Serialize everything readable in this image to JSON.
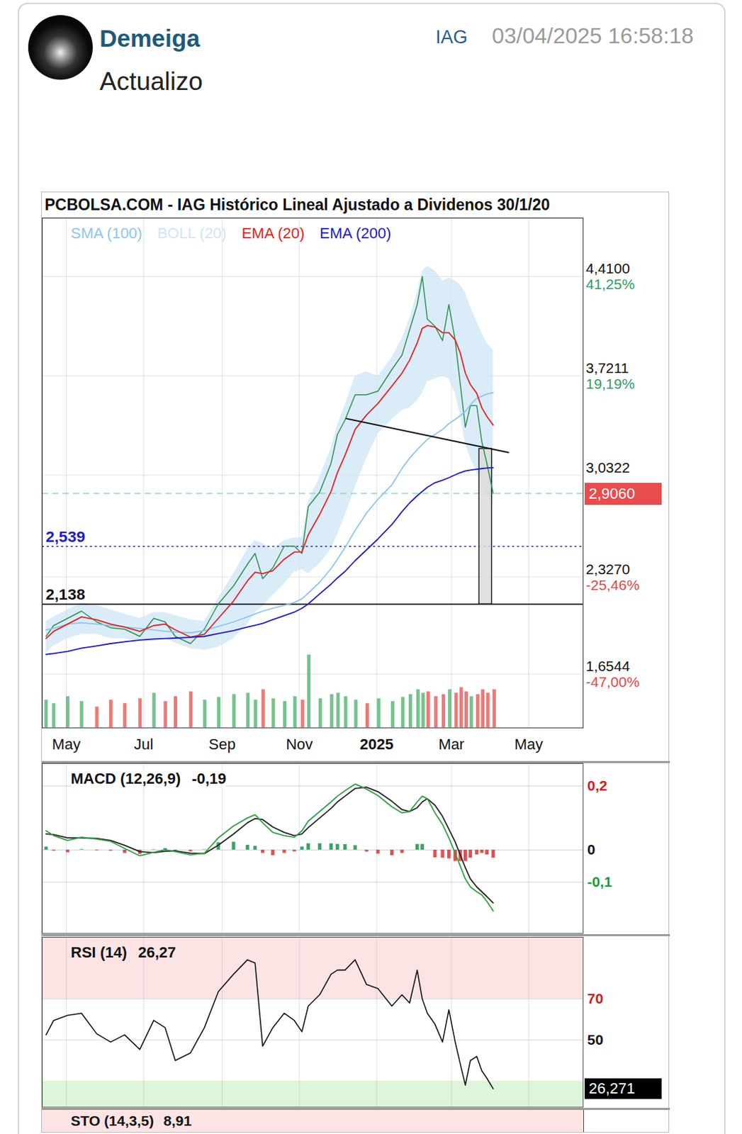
{
  "post": {
    "author": "Demeiga",
    "ticker": "IAG",
    "timestamp": "03/04/2025 16:58:18",
    "text": "Actualizo"
  },
  "chart_data": [
    {
      "type": "line",
      "title": "PCBOLSA.COM - IAG Histórico Lineal Ajustado a Dividenos 30/1/20",
      "x": [
        "2024-04-15",
        "2024-04-21",
        "2024-05-02",
        "2024-05-13",
        "2024-05-25",
        "2024-06-05",
        "2024-06-16",
        "2024-06-28",
        "2024-07-09",
        "2024-07-18",
        "2024-07-26",
        "2024-08-07",
        "2024-08-18",
        "2024-08-29",
        "2024-09-10",
        "2024-09-21",
        "2024-09-27",
        "2024-10-03",
        "2024-10-11",
        "2024-10-20",
        "2024-10-28",
        "2024-11-03",
        "2024-11-08",
        "2024-11-17",
        "2024-11-26",
        "2024-12-01",
        "2024-12-07",
        "2024-12-15",
        "2024-12-24",
        "2025-01-02",
        "2025-01-13",
        "2025-01-21",
        "2025-01-27",
        "2025-02-02",
        "2025-02-06",
        "2025-02-10",
        "2025-02-16",
        "2025-02-22",
        "2025-02-27",
        "2025-03-04",
        "2025-03-08",
        "2025-03-12",
        "2025-03-16",
        "2025-03-21",
        "2025-03-25",
        "2025-03-29",
        "2025-04-03"
      ],
      "xlim": [
        "2024-04-12",
        "2025-06-13"
      ],
      "xticks": [
        {
          "value": "2024-05-01",
          "label": "May"
        },
        {
          "value": "2024-07-01",
          "label": "Jul"
        },
        {
          "value": "2024-09-01",
          "label": "Sep"
        },
        {
          "value": "2024-11-01",
          "label": "Nov"
        },
        {
          "value": "2025-01-01",
          "label": "2025"
        },
        {
          "value": "2025-03-01",
          "label": "Mar"
        },
        {
          "value": "2025-05-01",
          "label": "May"
        }
      ],
      "ylim": [
        1.28,
        4.815
      ],
      "yticks": [
        {
          "value": 4.41,
          "label": "4,4100"
        },
        {
          "value": 3.7211,
          "label": "3,7211"
        },
        {
          "value": 3.0322,
          "label": "3,0322"
        },
        {
          "value": 2.327,
          "label": "2,3270"
        },
        {
          "value": 1.6544,
          "label": "1,6544"
        }
      ],
      "tick_notes": [
        {
          "y": 4.41,
          "label": "41,25%",
          "color": "#2e9e5e"
        },
        {
          "y": 3.7211,
          "label": "19,19%",
          "color": "#2e9e5e"
        },
        {
          "y": 2.327,
          "label": "-25,46%",
          "color": "#e04848"
        },
        {
          "y": 1.6544,
          "label": "-47,00%",
          "color": "#e04848"
        }
      ],
      "grid": true,
      "legend": "top-left",
      "series": [
        {
          "color": "#2f8f4f",
          "values": [
            1.915,
            1.99,
            2.04,
            2.09,
            2.015,
            1.975,
            1.965,
            1.915,
            2.04,
            2.015,
            1.915,
            1.865,
            1.965,
            2.14,
            2.265,
            2.415,
            2.49,
            2.315,
            2.39,
            2.54,
            2.54,
            2.49,
            2.815,
            2.915,
            3.115,
            3.315,
            3.415,
            3.59,
            3.59,
            3.615,
            3.765,
            3.865,
            4.04,
            4.215,
            4.41,
            4.115,
            4.065,
            3.965,
            4.215,
            3.965,
            3.665,
            3.365,
            3.515,
            3.515,
            3.265,
            3.115,
            2.906
          ]
        },
        {
          "name": "SMA (100)",
          "color": "#8ec5ee",
          "values": [
            1.96,
            1.97,
            2.0,
            2.01,
            2.0,
            1.99,
            1.98,
            1.97,
            1.96,
            1.95,
            1.945,
            1.94,
            1.955,
            1.985,
            2.015,
            2.05,
            2.07,
            2.09,
            2.11,
            2.13,
            2.15,
            2.175,
            2.215,
            2.29,
            2.385,
            2.45,
            2.53,
            2.65,
            2.77,
            2.865,
            2.965,
            3.08,
            3.15,
            3.21,
            3.245,
            3.28,
            3.315,
            3.35,
            3.39,
            3.42,
            3.445,
            3.475,
            3.52,
            3.565,
            3.58,
            3.595,
            3.605
          ]
        },
        {
          "name": "BOLL (20)",
          "type": "band",
          "color": "#cfe5f7",
          "lower": [
            1.8,
            1.85,
            1.9,
            1.93,
            1.93,
            1.9,
            1.9,
            1.88,
            1.88,
            1.9,
            1.87,
            1.83,
            1.82,
            1.84,
            1.9,
            2.0,
            2.08,
            2.12,
            2.2,
            2.28,
            2.36,
            2.38,
            2.35,
            2.42,
            2.52,
            2.62,
            2.75,
            2.95,
            3.15,
            3.32,
            3.42,
            3.48,
            3.5,
            3.55,
            3.6,
            3.68,
            3.7,
            3.72,
            3.7,
            3.6,
            3.45,
            3.25,
            3.15,
            3.05,
            2.98,
            2.9,
            2.82
          ],
          "upper": [
            2.02,
            2.05,
            2.1,
            2.15,
            2.13,
            2.1,
            2.07,
            2.04,
            2.08,
            2.08,
            2.06,
            2.03,
            2.02,
            2.18,
            2.35,
            2.52,
            2.58,
            2.56,
            2.52,
            2.58,
            2.6,
            2.6,
            2.85,
            3.02,
            3.22,
            3.38,
            3.52,
            3.72,
            3.75,
            3.72,
            3.85,
            3.98,
            4.12,
            4.3,
            4.45,
            4.48,
            4.45,
            4.38,
            4.4,
            4.38,
            4.35,
            4.3,
            4.2,
            4.1,
            4.02,
            3.95,
            3.9
          ]
        },
        {
          "name": "EMA (20)",
          "color": "#e02424",
          "values": [
            1.9,
            1.95,
            2.0,
            2.05,
            2.03,
            2.0,
            1.98,
            1.95,
            1.99,
            2.0,
            1.96,
            1.91,
            1.93,
            2.04,
            2.16,
            2.3,
            2.36,
            2.35,
            2.37,
            2.45,
            2.5,
            2.5,
            2.62,
            2.76,
            2.92,
            3.05,
            3.17,
            3.35,
            3.45,
            3.53,
            3.65,
            3.74,
            3.83,
            3.95,
            4.05,
            4.07,
            4.06,
            4.02,
            4.02,
            3.97,
            3.88,
            3.74,
            3.66,
            3.6,
            3.5,
            3.44,
            3.38
          ]
        },
        {
          "name": "EMA (200)",
          "color": "#1c1cc8",
          "values": [
            1.79,
            1.797,
            1.811,
            1.833,
            1.849,
            1.865,
            1.877,
            1.889,
            1.897,
            1.9,
            1.903,
            1.908,
            1.915,
            1.935,
            1.955,
            1.98,
            1.992,
            2.005,
            2.031,
            2.058,
            2.083,
            2.11,
            2.14,
            2.21,
            2.277,
            2.32,
            2.365,
            2.44,
            2.515,
            2.59,
            2.69,
            2.78,
            2.84,
            2.89,
            2.92,
            2.948,
            2.98,
            2.998,
            3.015,
            3.035,
            3.05,
            3.062,
            3.068,
            3.074,
            3.078,
            3.082,
            3.085
          ]
        }
      ],
      "lines": [
        {
          "y": 2.539,
          "label": "2,539",
          "color": "#2020c0",
          "line_style": "dotted"
        },
        {
          "y": 2.138,
          "label": "2,138",
          "color": "#111111",
          "line_style": "solid"
        },
        {
          "y": 2.906,
          "color": "#9fd8c0",
          "line_style": "dashed"
        }
      ],
      "neckline": {
        "x": [
          "2024-12-08",
          "2025-04-15"
        ],
        "y": [
          3.425,
          3.19
        ]
      },
      "box": {
        "x": [
          "2025-03-23",
          "2025-04-02"
        ],
        "y": [
          2.138,
          3.215
        ]
      },
      "last_box": {
        "value": 2.906,
        "label": "2,9060",
        "color": "#e84c4c"
      },
      "volume": {
        "ylim": [
          0,
          110
        ],
        "values": [
          40,
          35,
          45,
          38,
          30,
          40,
          35,
          42,
          50,
          38,
          45,
          52,
          40,
          44,
          48,
          50,
          40,
          55,
          42,
          38,
          45,
          40,
          105,
          42,
          48,
          50,
          45,
          40,
          35,
          42,
          38,
          44,
          48,
          55,
          50,
          52,
          45,
          48,
          55,
          50,
          58,
          52,
          45,
          48,
          55,
          50,
          55
        ],
        "colors": [
          "#5cb87a",
          "#5cb87a",
          "#5cb87a",
          "#5cb87a",
          "#e8635f",
          "#e8635f",
          "#e8635f",
          "#e8635f",
          "#5cb87a",
          "#e8635f",
          "#e8635f",
          "#e8635f",
          "#5cb87a",
          "#5cb87a",
          "#5cb87a",
          "#5cb87a",
          "#5cb87a",
          "#e8635f",
          "#5cb87a",
          "#5cb87a",
          "#5cb87a",
          "#e8635f",
          "#5cb87a",
          "#5cb87a",
          "#5cb87a",
          "#5cb87a",
          "#5cb87a",
          "#5cb87a",
          "#e8635f",
          "#5cb87a",
          "#5cb87a",
          "#5cb87a",
          "#5cb87a",
          "#5cb87a",
          "#5cb87a",
          "#e8635f",
          "#e8635f",
          "#e8635f",
          "#5cb87a",
          "#e8635f",
          "#e8635f",
          "#e8635f",
          "#5cb87a",
          "#e8635f",
          "#e8635f",
          "#e8635f",
          "#e8635f"
        ]
      }
    },
    {
      "type": "line",
      "title": "MACD (12,26,9)",
      "last_label": "-0,19",
      "ylim": [
        -0.26,
        0.27
      ],
      "yticks": [
        {
          "value": 0.2,
          "label": "0,2"
        },
        0,
        {
          "value": -0.1,
          "label": "-0,1"
        }
      ],
      "grid": true,
      "series": [
        {
          "type": "bar",
          "values": [
            0.01,
            -0.003,
            -0.008,
            0.002,
            -0.002,
            -0.003,
            -0.01,
            -0.013,
            0.001,
            0.005,
            -0.002,
            -0.005,
            0.001,
            0.023,
            0.025,
            0.015,
            0.012,
            -0.01,
            -0.017,
            -0.01,
            -0.005,
            0.01,
            0.02,
            0.02,
            0.02,
            0.018,
            0.017,
            0.014,
            -0.006,
            -0.012,
            -0.017,
            -0.01,
            0,
            0.018,
            0.018,
            0,
            -0.024,
            -0.025,
            -0.027,
            -0.035,
            -0.035,
            -0.035,
            -0.025,
            -0.015,
            -0.01,
            -0.015,
            -0.025
          ]
        },
        {
          "type": "line",
          "color": "#222222",
          "values": [
            0.05,
            0.048,
            0.038,
            0.038,
            0.036,
            0.03,
            0.015,
            -0.005,
            -0.008,
            -0.004,
            -0.003,
            -0.01,
            -0.011,
            0.015,
            0.05,
            0.085,
            0.098,
            0.095,
            0.072,
            0.055,
            0.045,
            0.05,
            0.07,
            0.1,
            0.13,
            0.15,
            0.168,
            0.192,
            0.196,
            0.182,
            0.152,
            0.126,
            0.12,
            0.132,
            0.15,
            0.16,
            0.14,
            0.105,
            0.065,
            0.025,
            -0.015,
            -0.055,
            -0.09,
            -0.115,
            -0.13,
            -0.145,
            -0.165
          ]
        },
        {
          "type": "line",
          "color": "#2ea043",
          "values": [
            0.06,
            0.045,
            0.03,
            0.04,
            0.034,
            0.027,
            0.005,
            -0.018,
            -0.007,
            0.001,
            -0.005,
            -0.015,
            -0.01,
            0.038,
            0.075,
            0.1,
            0.11,
            0.085,
            0.055,
            0.045,
            0.04,
            0.06,
            0.09,
            0.12,
            0.15,
            0.168,
            0.185,
            0.206,
            0.19,
            0.17,
            0.135,
            0.116,
            0.12,
            0.15,
            0.168,
            0.16,
            0.116,
            0.08,
            0.038,
            -0.01,
            -0.05,
            -0.09,
            -0.115,
            -0.13,
            -0.14,
            -0.16,
            -0.19
          ]
        }
      ]
    },
    {
      "type": "line",
      "title": "RSI (14)",
      "last_label": "26,27",
      "ylim": [
        17.3,
        100
      ],
      "yticks": [
        70,
        50
      ],
      "grid": true,
      "zones": [
        {
          "from": 70,
          "to": 100,
          "color": "#fde4e4"
        },
        {
          "from": 17.3,
          "to": 30,
          "color": "#ddf5d8"
        }
      ],
      "series": [
        {
          "color": "#111111",
          "values": [
            52.5,
            59.5,
            62,
            63,
            53,
            49,
            52.5,
            45.4,
            59.5,
            56,
            40,
            43.7,
            56,
            73.5,
            82,
            89,
            87.5,
            47,
            56,
            63,
            59.5,
            54,
            66.5,
            72,
            82,
            84,
            84,
            89,
            77,
            75,
            66.5,
            72,
            68,
            84,
            70,
            63,
            57.7,
            49,
            64.7,
            49,
            38.4,
            28,
            40,
            42,
            35,
            31.4,
            26.27
          ]
        }
      ],
      "last_box": {
        "value": 26.271,
        "label": "26,271"
      }
    },
    {
      "type": "line",
      "title": "STO (14,3,5)",
      "last_label": "8,91"
    }
  ]
}
